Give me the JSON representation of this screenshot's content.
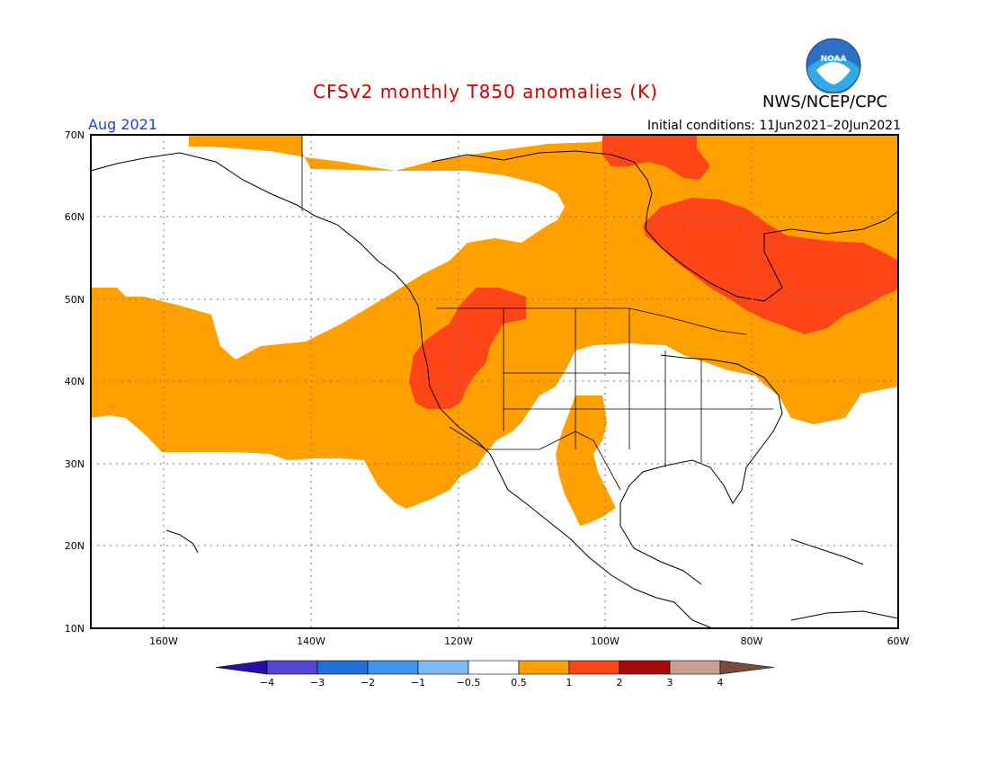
{
  "header": {
    "title": "CFSv2 monthly T850 anomalies (K)",
    "month": "Aug 2021",
    "initial_conditions": "Initial conditions: 11Jun2021–20Jun2021",
    "agency": "NWS/NCEP/CPC",
    "logo_text": "NOAA"
  },
  "map": {
    "lat_labels": [
      "70N",
      "60N",
      "50N",
      "40N",
      "30N",
      "20N",
      "10N"
    ],
    "lon_labels": [
      "160W",
      "140W",
      "120W",
      "100W",
      "80W",
      "60W"
    ],
    "colors": {
      "positive_0_5_to_1": "#ff9f00",
      "positive_1_to_2": "#ff4417",
      "land_outline": "#000000",
      "grid": "#777777"
    }
  },
  "colorbar": {
    "labels": [
      "−4",
      "−3",
      "−2",
      "−1",
      "−0.5",
      "0.5",
      "1",
      "2",
      "3",
      "4"
    ],
    "colors": [
      "#2a0da8",
      "#5546d6",
      "#1f6fd8",
      "#3e94ee",
      "#7fbaf5",
      "#ffffff",
      "#ff9f00",
      "#ff4417",
      "#a80b0b",
      "#c8a090",
      "#7a4a3a"
    ]
  }
}
